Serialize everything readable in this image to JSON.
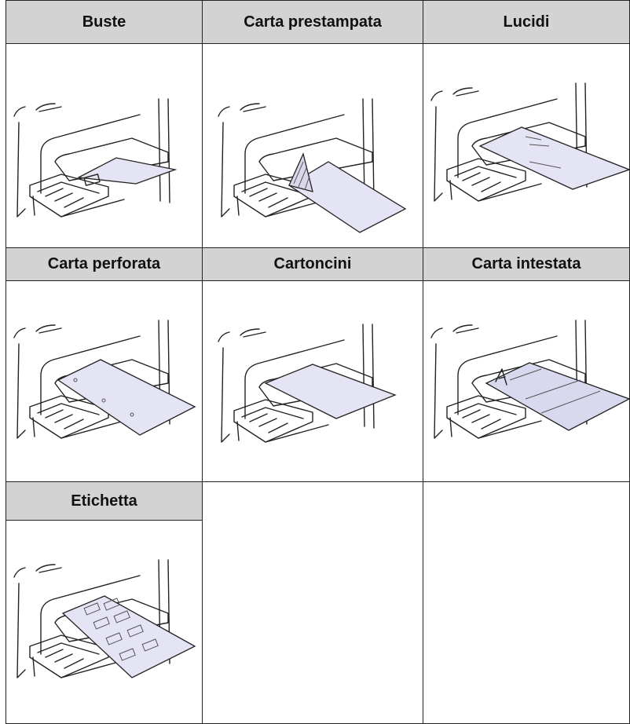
{
  "table": {
    "rows": [
      [
        "Buste",
        "Carta prestampata",
        "Lucidi"
      ],
      [
        "Carta perforata",
        "Cartoncini",
        "Carta intestata"
      ],
      [
        "Etichetta"
      ]
    ]
  }
}
